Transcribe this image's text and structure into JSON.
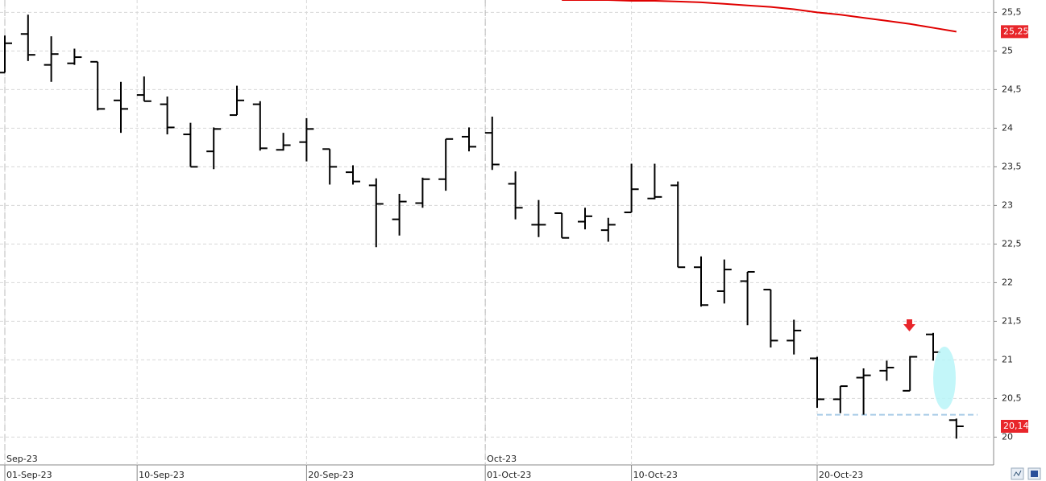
{
  "chart_data": {
    "type": "ohlc",
    "ohlc": {
      "open": [
        24.72,
        25.22,
        24.82,
        24.84,
        24.86,
        24.36,
        24.43,
        24.31,
        23.92,
        23.7,
        24.17,
        24.31,
        23.72,
        23.82,
        23.73,
        23.43,
        23.26,
        22.82,
        23.03,
        23.34,
        23.89,
        23.94,
        23.28,
        22.75,
        22.9,
        22.79,
        22.68,
        22.91,
        23.09,
        23.26,
        22.2,
        21.89,
        22.02,
        21.91,
        21.25,
        21.02,
        20.49,
        20.77,
        20.86,
        20.6,
        21.33,
        20.22
      ],
      "high": [
        25.2,
        25.47,
        25.19,
        25.03,
        24.86,
        24.6,
        24.67,
        24.41,
        24.07,
        24.01,
        24.55,
        24.35,
        23.94,
        24.13,
        23.73,
        23.52,
        23.35,
        23.15,
        23.36,
        23.86,
        24.01,
        24.15,
        23.44,
        23.07,
        22.9,
        22.97,
        22.84,
        23.54,
        23.54,
        23.31,
        22.34,
        22.3,
        22.14,
        21.91,
        21.52,
        21.04,
        20.66,
        20.89,
        20.99,
        21.05,
        21.35,
        20.24
      ],
      "low": [
        24.72,
        24.87,
        24.6,
        24.82,
        24.23,
        23.94,
        24.35,
        23.92,
        23.5,
        23.47,
        24.17,
        23.71,
        23.71,
        23.57,
        23.27,
        23.27,
        22.46,
        22.61,
        22.97,
        23.19,
        23.7,
        23.46,
        22.82,
        22.59,
        22.58,
        22.69,
        22.53,
        22.91,
        23.08,
        22.2,
        21.69,
        21.73,
        21.45,
        21.16,
        21.07,
        20.38,
        20.31,
        20.29,
        20.73,
        20.6,
        20.99,
        19.98
      ],
      "close": [
        25.1,
        24.95,
        24.96,
        24.92,
        24.25,
        24.25,
        24.35,
        24.01,
        23.5,
        23.99,
        24.36,
        23.74,
        23.78,
        23.99,
        23.5,
        23.31,
        23.02,
        23.05,
        23.34,
        23.86,
        23.76,
        23.53,
        22.97,
        22.75,
        22.58,
        22.86,
        22.75,
        23.21,
        23.11,
        22.2,
        21.71,
        22.17,
        22.14,
        21.25,
        21.38,
        20.49,
        20.66,
        20.8,
        20.9,
        21.04,
        21.1,
        20.14
      ],
      "color": "#000000",
      "last_label": "20,14",
      "label_color": "#e8262b"
    },
    "ma": {
      "color": "#e00000",
      "values": [
        null,
        null,
        null,
        null,
        null,
        null,
        null,
        null,
        null,
        null,
        null,
        null,
        null,
        null,
        null,
        null,
        null,
        null,
        null,
        null,
        null,
        null,
        null,
        null,
        25.66,
        25.66,
        25.66,
        25.65,
        25.65,
        25.64,
        25.63,
        25.61,
        25.59,
        25.57,
        25.54,
        25.5,
        25.47,
        25.43,
        25.39,
        25.35,
        25.3,
        25.25
      ],
      "last_label": "25,25"
    },
    "support_level": {
      "value": 20.29,
      "from": 35,
      "color": "#a8cbe6"
    },
    "ylim": [
      19.64,
      25.66
    ],
    "yticks": [
      20,
      {
        "value": 20.5,
        "label": "20,5"
      },
      21,
      {
        "value": 21.5,
        "label": "21,5"
      },
      22,
      {
        "value": 22.5,
        "label": "22,5"
      },
      23,
      {
        "value": 23.5,
        "label": "23,5"
      },
      24,
      {
        "value": 24.5,
        "label": "24,5"
      },
      25,
      {
        "value": 25.5,
        "label": "25,5"
      }
    ],
    "xticks": [
      {
        "value": 0,
        "label": "01-Sep-23"
      },
      {
        "value": 5.7,
        "label": "10-Sep-23"
      },
      {
        "value": 13,
        "label": "20-Sep-23"
      },
      {
        "value": 20.7,
        "label": "01-Oct-23"
      },
      {
        "value": 27,
        "label": "10-Oct-23"
      },
      {
        "value": 35,
        "label": "20-Oct-23"
      }
    ],
    "month_ticks": [
      {
        "value": 0,
        "label": "Sep-23"
      },
      {
        "value": 20.7,
        "label": "Oct-23"
      }
    ],
    "grid": true
  }
}
